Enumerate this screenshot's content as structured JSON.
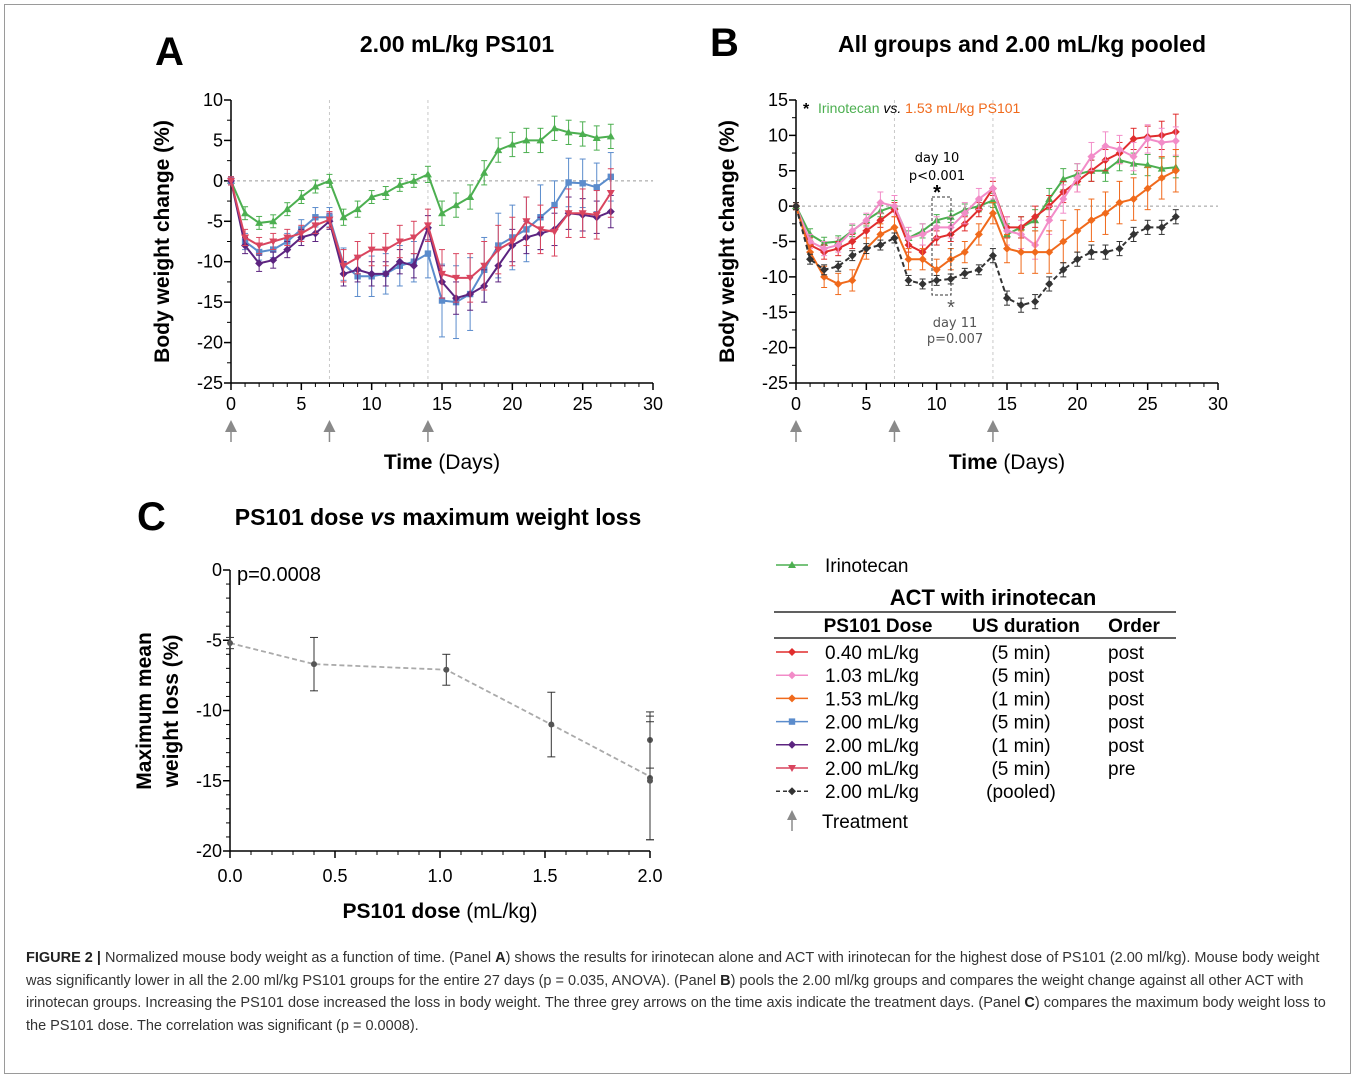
{
  "figure_label": "FIGURE 2",
  "caption": {
    "s1": "Normalized mouse body weight as a function of time. (Panel ",
    "s2": ") shows the results for irinotecan alone and ACT with irinotecan for the highest dose of PS101 (2.00 ml/kg). Mouse body weight was significantly lower in all the 2.00 ml/kg PS101 groups for the entire 27 days (p = 0.035, ANOVA). (Panel ",
    "s3": ") pools the 2.00 ml/kg groups and compares the weight change against all other ACT with irinotecan groups. Increasing the PS101 dose increased the loss in body weight. The three grey arrows on the time axis indicate the treatment days. (Panel ",
    "s4": ") compares the maximum body weight loss to the PS101 dose. The correlation was significant (p = 0.0008).",
    "A": "A",
    "B": "B",
    "C": "C"
  },
  "chart_data": [
    {
      "panel": "A",
      "type": "line",
      "title": "2.00 mL/kg PS101",
      "xlabel_bold": "Time",
      "xlabel_unit": " (Days)",
      "ylabel": "Body weight change (%)",
      "xlim": [
        0,
        30
      ],
      "ylim": [
        -25,
        10
      ],
      "xticks": [
        0,
        5,
        10,
        15,
        20,
        25,
        30
      ],
      "yticks": [
        10,
        5,
        0,
        -5,
        -10,
        -15,
        -20,
        -25
      ],
      "treatment_days": [
        0,
        7,
        14
      ],
      "series": [
        {
          "key": "irinotecan",
          "color": "#4caf50",
          "marker": "triangle",
          "x": [
            0,
            1,
            2,
            3,
            4,
            5,
            6,
            7,
            8,
            9,
            10,
            11,
            12,
            13,
            14,
            15,
            16,
            17,
            18,
            19,
            20,
            21,
            22,
            23,
            24,
            25,
            26,
            27
          ],
          "y": [
            0,
            -4,
            -5.2,
            -5,
            -3.5,
            -2,
            -0.7,
            0,
            -4.5,
            -3.5,
            -2,
            -1.5,
            -0.5,
            0,
            0.8,
            -4,
            -3,
            -2,
            1,
            3.8,
            4.5,
            5,
            5,
            6.5,
            6,
            5.8,
            5.3,
            5.5
          ],
          "err": [
            0.5,
            0.8,
            0.8,
            0.8,
            0.8,
            0.8,
            0.8,
            0.8,
            1,
            1,
            0.8,
            0.8,
            0.8,
            0.8,
            1,
            1.5,
            1.5,
            1.5,
            1.5,
            1.5,
            1.5,
            1.5,
            1.5,
            1.5,
            1.5,
            1.5,
            1.5,
            1.5
          ]
        },
        {
          "key": "2.00-5min-post",
          "color": "#5b8ccc",
          "marker": "square",
          "x": [
            0,
            1,
            2,
            3,
            4,
            5,
            6,
            7,
            8,
            9,
            10,
            11,
            12,
            13,
            14,
            15,
            16,
            17,
            18,
            19,
            20,
            21,
            22,
            23,
            24,
            25,
            26,
            27
          ],
          "y": [
            0,
            -7.5,
            -8.8,
            -8.5,
            -7.5,
            -6,
            -4.5,
            -4.5,
            -10.3,
            -11.8,
            -11.8,
            -11.5,
            -10.5,
            -10,
            -9,
            -14.8,
            -15,
            -14,
            -11,
            -8,
            -7,
            -6,
            -4.5,
            -3,
            -0.2,
            -0.3,
            -0.8,
            0.5
          ],
          "err": [
            0.5,
            1,
            1,
            1,
            1,
            1.2,
            1.2,
            1.2,
            2,
            2.5,
            2.5,
            2.5,
            2.5,
            2.5,
            3,
            4.5,
            4.5,
            4.5,
            4,
            4,
            4,
            4,
            4,
            3,
            3,
            3,
            3,
            3
          ]
        },
        {
          "key": "2.00-1min-post",
          "color": "#5c2480",
          "marker": "diamond",
          "x": [
            0,
            1,
            2,
            3,
            4,
            5,
            6,
            7,
            8,
            9,
            10,
            11,
            12,
            13,
            14,
            15,
            16,
            17,
            18,
            19,
            20,
            21,
            22,
            23,
            24,
            25,
            26,
            27
          ],
          "y": [
            0,
            -8,
            -10.2,
            -9.8,
            -8.5,
            -7,
            -6.5,
            -5,
            -11.5,
            -11,
            -11.5,
            -11.5,
            -10,
            -10.5,
            -5.8,
            -12.5,
            -14.5,
            -14,
            -13,
            -10.5,
            -8,
            -7,
            -6.5,
            -6,
            -4,
            -4.2,
            -4.5,
            -3.8
          ],
          "err": [
            0.5,
            1,
            1,
            1,
            1,
            1,
            1,
            1,
            1.5,
            1.5,
            1.5,
            1.5,
            1.5,
            1.5,
            1.5,
            2,
            2,
            2,
            2,
            2,
            2,
            2,
            2,
            2,
            2,
            2,
            2,
            2
          ]
        },
        {
          "key": "2.00-5min-pre",
          "color": "#d9455f",
          "marker": "triangle-down",
          "x": [
            0,
            1,
            2,
            3,
            4,
            5,
            6,
            7,
            8,
            9,
            10,
            11,
            12,
            13,
            14,
            15,
            16,
            17,
            18,
            19,
            20,
            21,
            22,
            23,
            24,
            25,
            26,
            27
          ],
          "y": [
            0,
            -7,
            -8,
            -7.5,
            -7,
            -6.5,
            -5.5,
            -4.8,
            -10.5,
            -9.5,
            -8.5,
            -8.5,
            -7.5,
            -7,
            -5.5,
            -11.5,
            -12,
            -12,
            -10.5,
            -8.5,
            -7.5,
            -5,
            -6,
            -6.3,
            -4,
            -4,
            -4.2,
            -1.5
          ],
          "err": [
            0.5,
            1,
            1,
            1,
            1,
            1,
            1,
            1,
            2,
            2,
            2,
            2,
            2,
            2,
            2,
            3,
            3,
            3,
            3,
            3,
            3,
            3,
            3,
            3,
            3,
            3,
            3,
            3
          ]
        }
      ]
    },
    {
      "panel": "B",
      "type": "line",
      "title": "All groups and 2.00 mL/kg pooled",
      "xlabel_bold": "Time",
      "xlabel_unit": " (Days)",
      "ylabel": "Body weight change (%)",
      "xlim": [
        0,
        30
      ],
      "ylim": [
        -25,
        15
      ],
      "xticks": [
        0,
        5,
        10,
        15,
        20,
        25,
        30
      ],
      "yticks": [
        15,
        10,
        5,
        0,
        -5,
        -10,
        -15,
        -20,
        -25
      ],
      "treatment_days": [
        0,
        7,
        14
      ],
      "legend_note": {
        "star": "*",
        "a": "Irinotecan",
        "vs": "vs.",
        "b": "1.53 mL/kg PS101"
      },
      "annotations": [
        {
          "line1": "day 10",
          "line2": "p<0.001",
          "star": "*"
        },
        {
          "line1": "day 11",
          "line2": "p=0.007",
          "star": "*"
        }
      ],
      "series": [
        {
          "key": "irinotecan",
          "color": "#4caf50",
          "marker": "triangle",
          "x": [
            0,
            1,
            2,
            3,
            4,
            5,
            6,
            7,
            8,
            9,
            10,
            11,
            12,
            13,
            14,
            15,
            16,
            17,
            18,
            19,
            20,
            21,
            22,
            23,
            24,
            25,
            26,
            27
          ],
          "y": [
            0,
            -4,
            -5.2,
            -5,
            -3.5,
            -2,
            -0.7,
            0,
            -4.5,
            -3.5,
            -2,
            -1.5,
            -0.5,
            0,
            0.8,
            -4,
            -3,
            -2,
            1,
            3.8,
            4.5,
            5,
            5,
            6.5,
            6,
            5.8,
            5.3,
            5.5
          ],
          "err": [
            0.5,
            0.8,
            0.8,
            0.8,
            0.8,
            0.8,
            0.8,
            0.8,
            1,
            1,
            0.8,
            0.8,
            0.8,
            0.8,
            1,
            1.5,
            1.5,
            1.5,
            1.5,
            1.5,
            1.5,
            1.5,
            1.5,
            1.5,
            1.5,
            1.5,
            1.5,
            1.5
          ]
        },
        {
          "key": "0.40-5min-post",
          "color": "#e02d2d",
          "marker": "diamond",
          "x": [
            0,
            1,
            2,
            3,
            4,
            5,
            6,
            7,
            8,
            9,
            10,
            11,
            12,
            13,
            14,
            15,
            16,
            17,
            18,
            19,
            20,
            21,
            22,
            23,
            24,
            25,
            26,
            27
          ],
          "y": [
            0,
            -5.5,
            -6.5,
            -6,
            -5,
            -3.5,
            -2,
            -0.5,
            -5.5,
            -6.5,
            -4.5,
            -4,
            -2.5,
            -0.5,
            2.5,
            -3,
            -3,
            -1.5,
            0,
            2,
            3.5,
            5,
            6.5,
            7.5,
            9.5,
            9.8,
            10,
            10.5
          ],
          "err": [
            0.5,
            1,
            1,
            1,
            1,
            1,
            1,
            1,
            1,
            1,
            1,
            1,
            1,
            1,
            1,
            1.5,
            1.5,
            1.5,
            1.5,
            1.5,
            1.5,
            1.5,
            1.5,
            1.5,
            1.5,
            1.5,
            2,
            2.5
          ]
        },
        {
          "key": "1.03-5min-post",
          "color": "#f28cc8",
          "marker": "diamond",
          "x": [
            0,
            1,
            2,
            3,
            4,
            5,
            6,
            7,
            8,
            9,
            10,
            11,
            12,
            13,
            14,
            15,
            16,
            17,
            18,
            19,
            20,
            21,
            22,
            23,
            24,
            25,
            26,
            27
          ],
          "y": [
            0,
            -5,
            -6,
            -5.5,
            -3.5,
            -2,
            0.5,
            0,
            -4.5,
            -4,
            -3,
            -3,
            -1,
            1,
            2.5,
            -3.5,
            -4,
            -5.5,
            -2,
            1,
            4,
            7,
            8.5,
            8,
            7,
            9.5,
            9,
            9.2
          ],
          "err": [
            0.5,
            1,
            1,
            1,
            1,
            1,
            1.5,
            1.5,
            1.5,
            1.5,
            1.5,
            1.5,
            1.5,
            1.5,
            1.5,
            2,
            2,
            2,
            2,
            2,
            2,
            2,
            2,
            2,
            2,
            2,
            2,
            2
          ]
        },
        {
          "key": "1.53-1min-post",
          "color": "#f06a1c",
          "marker": "diamond",
          "x": [
            0,
            1,
            2,
            3,
            4,
            5,
            6,
            7,
            8,
            9,
            10,
            11,
            12,
            13,
            14,
            15,
            16,
            17,
            18,
            19,
            20,
            21,
            22,
            23,
            24,
            25,
            26,
            27
          ],
          "y": [
            0,
            -6.5,
            -10,
            -11,
            -10.5,
            -6,
            -4,
            -3,
            -7.5,
            -7.5,
            -9,
            -7.5,
            -6.5,
            -4,
            -1,
            -6,
            -6.5,
            -6.5,
            -6.5,
            -5,
            -3.5,
            -2,
            -1,
            0.5,
            1,
            2.5,
            4,
            5
          ],
          "err": [
            0.5,
            1,
            1.5,
            1.5,
            1.5,
            1.5,
            1.5,
            1.5,
            1.5,
            1.5,
            1.5,
            1.5,
            1.5,
            1.5,
            1.5,
            2,
            3,
            3,
            3,
            3,
            3,
            3,
            3,
            3,
            3,
            3,
            3,
            3
          ]
        },
        {
          "key": "2.00-pooled",
          "color": "#333333",
          "marker": "diamond",
          "dashed": true,
          "x": [
            0,
            1,
            2,
            3,
            4,
            5,
            6,
            7,
            8,
            9,
            10,
            11,
            12,
            13,
            14,
            15,
            16,
            17,
            18,
            19,
            20,
            21,
            22,
            23,
            24,
            25,
            26,
            27
          ],
          "y": [
            0,
            -7.5,
            -9,
            -8.5,
            -7,
            -6,
            -5.5,
            -4.5,
            -10.5,
            -11,
            -10.5,
            -10.3,
            -9.5,
            -9,
            -7,
            -13,
            -14,
            -13.5,
            -11,
            -9,
            -7.5,
            -6.5,
            -6.5,
            -6,
            -4,
            -3,
            -3,
            -1.5
          ],
          "err": [
            0.5,
            0.7,
            0.7,
            0.7,
            0.7,
            0.7,
            0.7,
            0.7,
            0.7,
            0.7,
            0.7,
            0.7,
            0.7,
            0.7,
            1,
            1,
            1,
            1,
            1,
            1,
            1,
            1,
            1,
            1,
            1,
            1,
            1,
            1
          ]
        }
      ]
    },
    {
      "panel": "C",
      "type": "scatter",
      "title_a": "PS101 dose ",
      "title_b": "vs",
      "title_c": " maximum weight loss",
      "xlabel_bold": "PS101 dose",
      "xlabel_unit": " (mL/kg)",
      "ylabel_1": "Maximum mean",
      "ylabel_2": "weight loss (%)",
      "p_value": "p=0.0008",
      "xlim": [
        0,
        2
      ],
      "ylim": [
        -20,
        0
      ],
      "xticks": [
        "0.0",
        "0.5",
        "1.0",
        "1.5",
        "2.0"
      ],
      "yticks": [
        0,
        -5,
        -10,
        -15,
        -20
      ],
      "points": [
        {
          "x": 0.0,
          "y": -5.2,
          "err": 0.4
        },
        {
          "x": 0.4,
          "y": -6.7,
          "err": 1.9
        },
        {
          "x": 1.03,
          "y": -7.1,
          "err": 1.1
        },
        {
          "x": 1.53,
          "y": -11.0,
          "err": 2.3
        },
        {
          "x": 2.0,
          "y": -12.1,
          "err": 2.0
        },
        {
          "x": 2.0,
          "y": -14.8,
          "err": 4.4
        },
        {
          "x": 2.0,
          "y": -15.0,
          "err": 4.2
        }
      ],
      "trend": [
        [
          0,
          -5.2
        ],
        [
          0.4,
          -6.7
        ],
        [
          1.03,
          -7.1
        ],
        [
          1.53,
          -11.0
        ],
        [
          2.0,
          -14.7
        ]
      ]
    }
  ],
  "legend": {
    "irinotecan": "Irinotecan",
    "table_title": "ACT with irinotecan",
    "headers": [
      "PS101 Dose",
      "US duration",
      "Order"
    ],
    "rows": [
      {
        "color": "#e02d2d",
        "marker": "diamond",
        "dose": "0.40 mL/kg",
        "us": "(5 min)",
        "order": "post"
      },
      {
        "color": "#f28cc8",
        "marker": "diamond",
        "dose": "1.03 mL/kg",
        "us": "(5 min)",
        "order": "post"
      },
      {
        "color": "#f06a1c",
        "marker": "diamond",
        "dose": "1.53 mL/kg",
        "us": "(1 min)",
        "order": "post"
      },
      {
        "color": "#5b8ccc",
        "marker": "square",
        "dose": "2.00 mL/kg",
        "us": "(5 min)",
        "order": "post"
      },
      {
        "color": "#5c2480",
        "marker": "diamond",
        "dose": "2.00 mL/kg",
        "us": "(1 min)",
        "order": "post"
      },
      {
        "color": "#d9455f",
        "marker": "triangle-down",
        "dose": "2.00 mL/kg",
        "us": "(5 min)",
        "order": "pre"
      },
      {
        "color": "#333333",
        "marker": "diamond",
        "dashed": true,
        "dose": "2.00 mL/kg",
        "us": "(pooled)",
        "order": ""
      }
    ],
    "treatment": "Treatment"
  }
}
